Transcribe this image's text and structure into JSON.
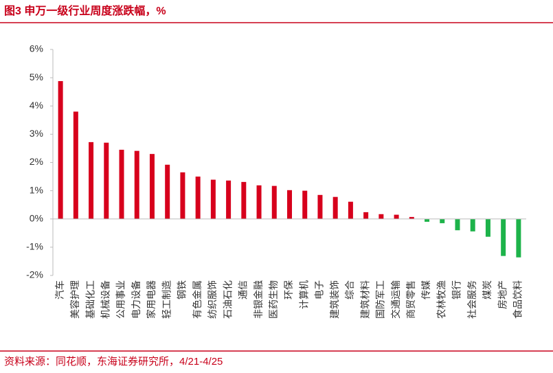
{
  "chart_data": {
    "type": "bar",
    "title": "图3 申万一级行业周度涨跌幅，%",
    "source": "资料来源：同花顺，东海证券研究所，4/21-4/25",
    "categories": [
      "汽车",
      "美容护理",
      "基础化工",
      "机械设备",
      "公用事业",
      "电力设备",
      "家用电器",
      "轻工制造",
      "钢铁",
      "有色金属",
      "纺织服饰",
      "石油石化",
      "通信",
      "非银金融",
      "医药生物",
      "环保",
      "计算机",
      "电子",
      "建筑装饰",
      "综合",
      "建筑材料",
      "国防军工",
      "交通运输",
      "商贸零售",
      "传媒",
      "农林牧渔",
      "银行",
      "社会服务",
      "煤炭",
      "房地产",
      "食品饮料"
    ],
    "values": [
      4.88,
      3.8,
      2.72,
      2.7,
      2.45,
      2.41,
      2.3,
      1.92,
      1.65,
      1.5,
      1.39,
      1.36,
      1.31,
      1.19,
      1.17,
      1.02,
      1.0,
      0.85,
      0.78,
      0.61,
      0.24,
      0.17,
      0.15,
      0.07,
      -0.1,
      -0.15,
      -0.4,
      -0.44,
      -0.63,
      -1.31,
      -1.36
    ],
    "positive_color": "#d7001c",
    "negative_color": "#1db34a",
    "ylim": [
      -2,
      6
    ],
    "yticks": [
      {
        "value": -2,
        "label": "-2%"
      },
      {
        "value": -1,
        "label": "-1%"
      },
      {
        "value": 0,
        "label": "0%"
      },
      {
        "value": 1,
        "label": "1%"
      },
      {
        "value": 2,
        "label": "2%"
      },
      {
        "value": 3,
        "label": "3%"
      },
      {
        "value": 4,
        "label": "4%"
      },
      {
        "value": 5,
        "label": "5%"
      },
      {
        "value": 6,
        "label": "6%"
      }
    ],
    "grid": false
  }
}
